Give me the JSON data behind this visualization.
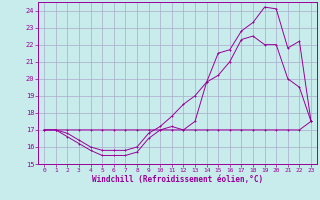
{
  "xlabel": "Windchill (Refroidissement éolien,°C)",
  "bg_color": "#c8ecec",
  "line_color": "#990099",
  "grid_color": "#aaaacc",
  "xlim": [
    -0.5,
    23.5
  ],
  "ylim": [
    15,
    24.5
  ],
  "yticks": [
    15,
    16,
    17,
    18,
    19,
    20,
    21,
    22,
    23,
    24
  ],
  "xticks": [
    0,
    1,
    2,
    3,
    4,
    5,
    6,
    7,
    8,
    9,
    10,
    11,
    12,
    13,
    14,
    15,
    16,
    17,
    18,
    19,
    20,
    21,
    22,
    23
  ],
  "series1_x": [
    0,
    1,
    2,
    3,
    4,
    5,
    6,
    7,
    8,
    9,
    10,
    11,
    12,
    13,
    14,
    15,
    16,
    17,
    18,
    19,
    20,
    21,
    22,
    23
  ],
  "series1_y": [
    17.0,
    17.0,
    17.0,
    17.0,
    17.0,
    17.0,
    17.0,
    17.0,
    17.0,
    17.0,
    17.0,
    17.0,
    17.0,
    17.0,
    17.0,
    17.0,
    17.0,
    17.0,
    17.0,
    17.0,
    17.0,
    17.0,
    17.0,
    17.5
  ],
  "series2_x": [
    0,
    1,
    2,
    3,
    4,
    5,
    6,
    7,
    8,
    9,
    10,
    11,
    12,
    13,
    14,
    15,
    16,
    17,
    18,
    19,
    20,
    21,
    22,
    23
  ],
  "series2_y": [
    17.0,
    17.0,
    16.6,
    16.2,
    15.8,
    15.5,
    15.5,
    15.5,
    15.7,
    16.5,
    17.0,
    17.2,
    17.0,
    17.5,
    19.8,
    21.5,
    21.7,
    22.8,
    23.3,
    24.2,
    24.1,
    21.8,
    22.2,
    17.5
  ],
  "series3_x": [
    0,
    1,
    2,
    3,
    4,
    5,
    6,
    7,
    8,
    9,
    10,
    11,
    12,
    13,
    14,
    15,
    16,
    17,
    18,
    19,
    20,
    21,
    22,
    23
  ],
  "series3_y": [
    17.0,
    17.0,
    16.8,
    16.4,
    16.0,
    15.8,
    15.8,
    15.8,
    16.0,
    16.8,
    17.2,
    17.8,
    18.5,
    19.0,
    19.8,
    20.2,
    21.0,
    22.3,
    22.5,
    22.0,
    22.0,
    20.0,
    19.5,
    17.5
  ]
}
